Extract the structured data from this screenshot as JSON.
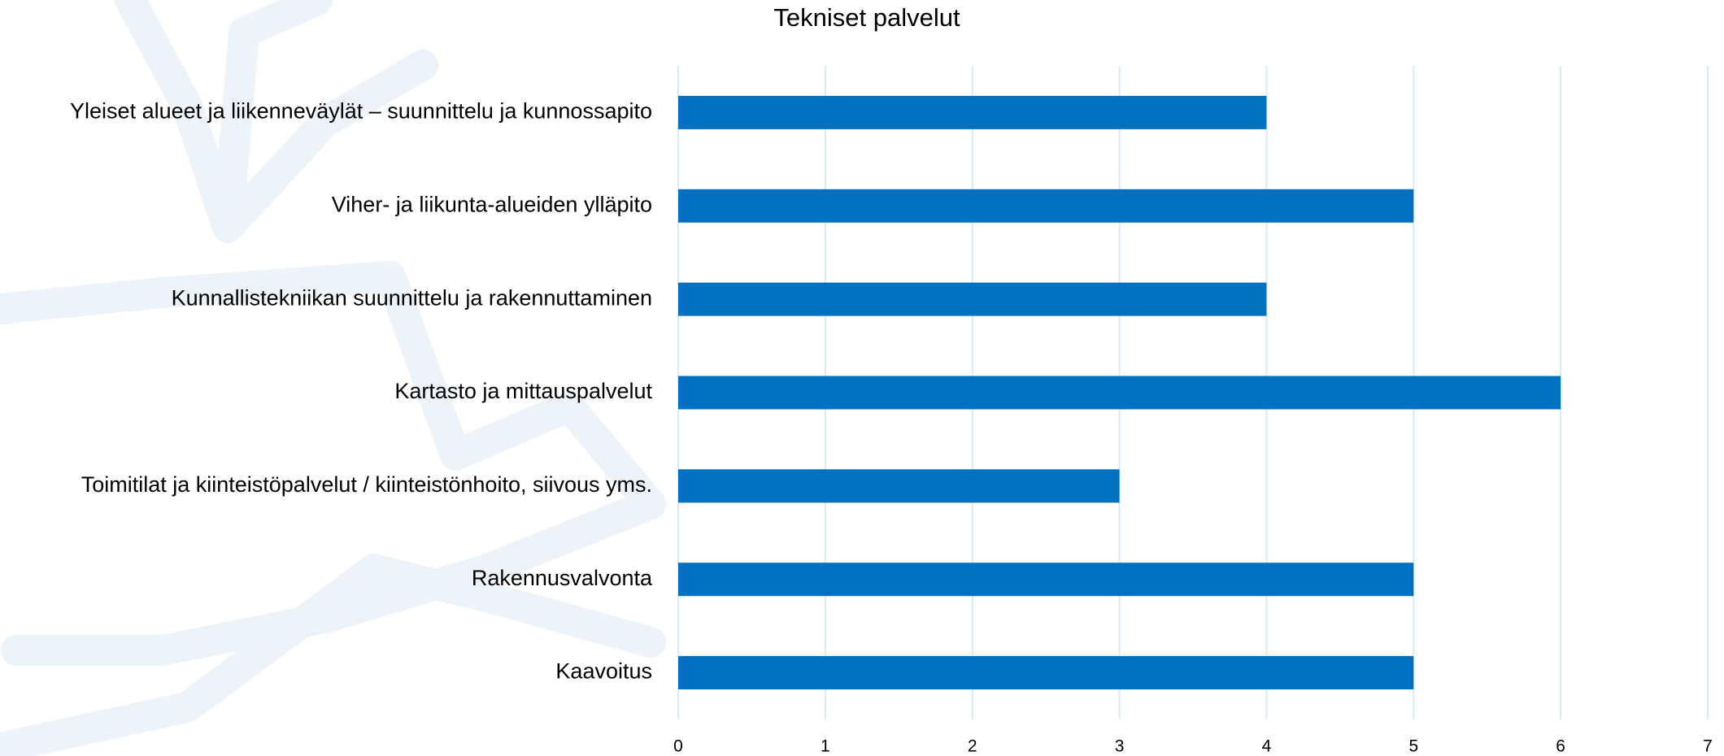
{
  "chart_data": {
    "type": "bar",
    "orientation": "horizontal",
    "title": "Tekniset palvelut",
    "categories": [
      "Yleiset alueet ja liikenneväylät – suunnittelu ja kunnossapito",
      "Viher- ja liikunta-alueiden ylläpito",
      "Kunnallistekniikan suunnittelu ja rakennuttaminen",
      "Kartasto ja mittauspalvelut",
      "Toimitilat ja kiinteistöpalvelut / kiinteistönhoito, siivous yms.",
      "Rakennusvalvonta",
      "Kaavoitus"
    ],
    "values": [
      4,
      5,
      4,
      6,
      3,
      5,
      5
    ],
    "color": "#0070c0",
    "xlim": [
      0,
      7
    ],
    "xticks": [
      0,
      1,
      2,
      3,
      4,
      5,
      6,
      7
    ],
    "grid": true
  }
}
